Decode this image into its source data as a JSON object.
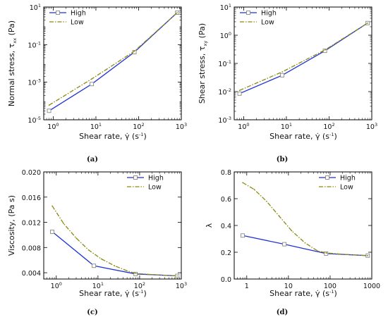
{
  "colors": {
    "high": "#1f32d6",
    "low": "#8c8a10",
    "marker": "#888888",
    "axis": "#000000"
  },
  "chart_data": [
    {
      "id": "a",
      "type": "line",
      "panel_label": "(a)",
      "ylabel": "Normal stress, τ",
      "ylabel_sub": "xx",
      "ylabel_unit": " (Pa)",
      "xlabel": "Shear rate, γ̇ (s",
      "xlabel_exp": "-1",
      "xlabel_close": ")",
      "xscale": "log",
      "yscale": "log",
      "xlim": [
        0.6,
        1000
      ],
      "ylim": [
        1e-05,
        10
      ],
      "x_ticks": [
        {
          "v": 1,
          "base": "10",
          "exp": "0"
        },
        {
          "v": 10,
          "base": "10",
          "exp": "1"
        },
        {
          "v": 100,
          "base": "10",
          "exp": "2"
        },
        {
          "v": 1000,
          "base": "10",
          "exp": "3"
        }
      ],
      "y_ticks": [
        {
          "v": 1e-05,
          "base": "10",
          "exp": "-5"
        },
        {
          "v": 0.001,
          "base": "10",
          "exp": "-3"
        },
        {
          "v": 0.1,
          "base": "10",
          "exp": "-1"
        },
        {
          "v": 10,
          "base": "10",
          "exp": "1"
        }
      ],
      "legend_position": "top-left",
      "series": [
        {
          "name": "High",
          "style": "solid-square",
          "x": [
            0.8,
            8,
            80,
            800
          ],
          "y": [
            3e-05,
            0.0008,
            0.04,
            5
          ]
        },
        {
          "name": "Low",
          "style": "dashdot",
          "x": [
            0.8,
            8,
            80,
            800
          ],
          "y": [
            6e-05,
            0.0015,
            0.045,
            5
          ]
        }
      ]
    },
    {
      "id": "b",
      "type": "line",
      "panel_label": "(b)",
      "ylabel": "Shear stress, τ",
      "ylabel_sub": "xy",
      "ylabel_unit": " (Pa)",
      "xlabel": "Shear rate, γ̇ (s",
      "xlabel_exp": "-1",
      "xlabel_close": ")",
      "xscale": "log",
      "yscale": "log",
      "xlim": [
        0.6,
        1000
      ],
      "ylim": [
        0.001,
        10
      ],
      "x_ticks": [
        {
          "v": 1,
          "base": "10",
          "exp": "0"
        },
        {
          "v": 10,
          "base": "10",
          "exp": "1"
        },
        {
          "v": 100,
          "base": "10",
          "exp": "2"
        },
        {
          "v": 1000,
          "base": "10",
          "exp": "3"
        }
      ],
      "y_ticks": [
        {
          "v": 0.001,
          "base": "10",
          "exp": "-3"
        },
        {
          "v": 0.01,
          "base": "10",
          "exp": "-2"
        },
        {
          "v": 0.1,
          "base": "10",
          "exp": "-1"
        },
        {
          "v": 1,
          "base": "10",
          "exp": "0"
        },
        {
          "v": 10,
          "base": "10",
          "exp": "1"
        }
      ],
      "legend_position": "top-left",
      "series": [
        {
          "name": "High",
          "style": "solid-square",
          "x": [
            0.8,
            8,
            80,
            800
          ],
          "y": [
            0.0085,
            0.038,
            0.28,
            2.7
          ]
        },
        {
          "name": "Low",
          "style": "dashdot",
          "x": [
            0.8,
            8,
            80,
            800
          ],
          "y": [
            0.011,
            0.05,
            0.3,
            2.7
          ]
        }
      ]
    },
    {
      "id": "c",
      "type": "line",
      "panel_label": "(c)",
      "ylabel": "Viscosity, (Pa s)",
      "xlabel": "Shear rate, γ̇ (s",
      "xlabel_exp": "-1",
      "xlabel_close": ")",
      "xscale": "log",
      "yscale": "linear",
      "xlim": [
        0.5,
        1000
      ],
      "ylim": [
        0.003,
        0.02
      ],
      "x_ticks": [
        {
          "v": 1,
          "base": "10",
          "exp": "0"
        },
        {
          "v": 10,
          "base": "10",
          "exp": "1"
        },
        {
          "v": 100,
          "base": "10",
          "exp": "2"
        },
        {
          "v": 1000,
          "base": "10",
          "exp": "3"
        }
      ],
      "y_ticks": [
        {
          "v": 0.004,
          "label": "0.004"
        },
        {
          "v": 0.008,
          "label": "0.008"
        },
        {
          "v": 0.012,
          "label": "0.012"
        },
        {
          "v": 0.016,
          "label": "0.016"
        },
        {
          "v": 0.02,
          "label": "0.020"
        }
      ],
      "legend_position": "top-right",
      "series": [
        {
          "name": "High",
          "style": "solid-square",
          "x": [
            0.8,
            8,
            80,
            800
          ],
          "y": [
            0.0105,
            0.0051,
            0.0038,
            0.0035
          ]
        },
        {
          "name": "Low",
          "style": "dashdot",
          "x": [
            0.8,
            1.5,
            3,
            6,
            12,
            25,
            50,
            80,
            200,
            800
          ],
          "y": [
            0.0146,
            0.0118,
            0.0095,
            0.0076,
            0.0062,
            0.0051,
            0.0043,
            0.0039,
            0.0037,
            0.0035
          ]
        }
      ]
    },
    {
      "id": "d",
      "type": "line",
      "panel_label": "(d)",
      "ylabel": "λ",
      "xlabel": "Shear rate, γ̇ (s",
      "xlabel_exp": "-1",
      "xlabel_close": ")",
      "xscale": "log",
      "yscale": "linear",
      "xlim": [
        0.5,
        1000
      ],
      "ylim": [
        0,
        0.8
      ],
      "x_ticks": [
        {
          "v": 1,
          "label": "1"
        },
        {
          "v": 10,
          "label": "10"
        },
        {
          "v": 100,
          "label": "100"
        },
        {
          "v": 1000,
          "label": "1000"
        }
      ],
      "y_ticks": [
        {
          "v": 0,
          "label": "0.0"
        },
        {
          "v": 0.2,
          "label": "0.2"
        },
        {
          "v": 0.4,
          "label": "0.4"
        },
        {
          "v": 0.6,
          "label": "0.6"
        },
        {
          "v": 0.8,
          "label": "0.8"
        }
      ],
      "legend_position": "top-right",
      "series": [
        {
          "name": "High",
          "style": "solid-square",
          "x": [
            0.8,
            8,
            80,
            800
          ],
          "y": [
            0.325,
            0.26,
            0.19,
            0.175
          ]
        },
        {
          "name": "Low",
          "style": "dashdot",
          "x": [
            0.8,
            1.5,
            3,
            6,
            12,
            25,
            50,
            80,
            200,
            800
          ],
          "y": [
            0.72,
            0.67,
            0.58,
            0.47,
            0.36,
            0.27,
            0.21,
            0.195,
            0.185,
            0.175
          ]
        }
      ]
    }
  ]
}
